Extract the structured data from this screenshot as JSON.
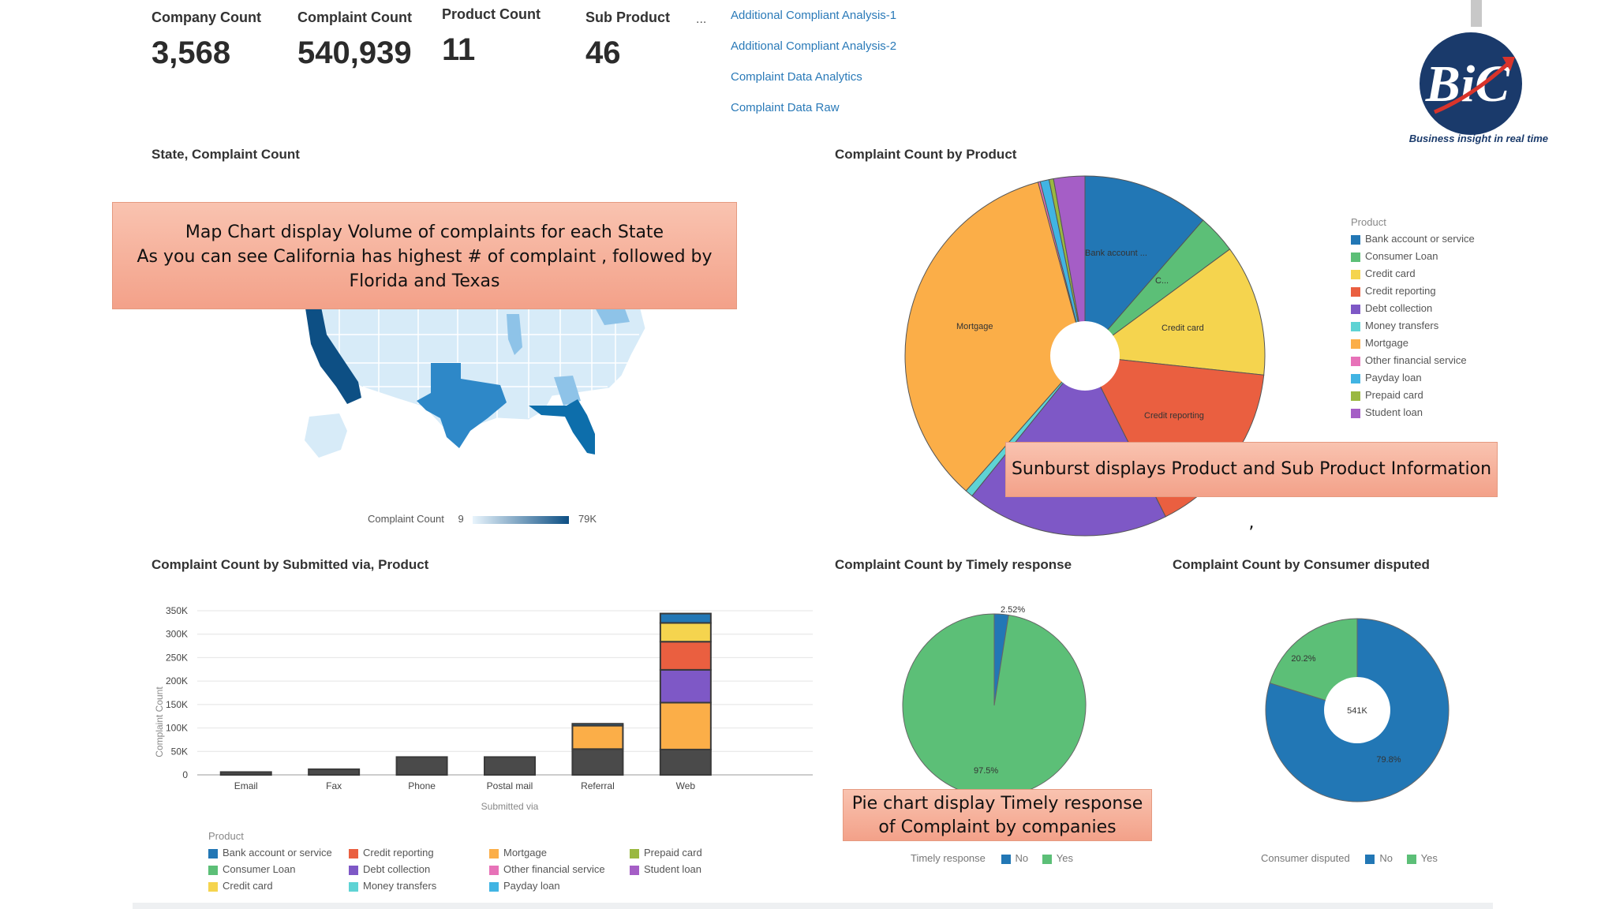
{
  "kpis": [
    {
      "label": "Company Count",
      "value": "3,568"
    },
    {
      "label": "Complaint Count",
      "value": "540,939"
    },
    {
      "label": "Product Count",
      "value": "11"
    },
    {
      "label": "Sub Product",
      "value": "46"
    }
  ],
  "kpi_more": "...",
  "links": [
    "Additional Compliant Analysis-1",
    "Additional Compliant Analysis-2",
    "Complaint Data Analytics",
    "Complaint Data Raw"
  ],
  "logo": {
    "text": "BiC",
    "tagline": "Business insight in real time",
    "colors": {
      "circle": "#1a3a6b",
      "arrow": "#d9342b"
    }
  },
  "map": {
    "title": "State, Complaint Count",
    "callout_lines": [
      "Map Chart display Volume of complaints for each State",
      "As you can see California has highest # of complaint , followed by",
      "Florida and Texas"
    ],
    "legend_label": "Complaint Count",
    "legend_min": "9",
    "legend_max": "79K"
  },
  "product_chart": {
    "title": "Complaint Count by Product",
    "legend_title": "Product",
    "slice_labels": {
      "bank": "Bank account ...",
      "consumer": "C...",
      "credit_card": "Credit card",
      "credit_reporting": "Credit reporting",
      "mortgage": "Mortgage"
    },
    "callout": "Sunburst displays Product and Sub Product Information ,"
  },
  "products": [
    {
      "name": "Bank account or service",
      "color": "#2277b5"
    },
    {
      "name": "Consumer Loan",
      "color": "#5cbf77"
    },
    {
      "name": "Credit card",
      "color": "#f5d44e"
    },
    {
      "name": "Credit reporting",
      "color": "#ea5f40"
    },
    {
      "name": "Debt collection",
      "color": "#7e58c6"
    },
    {
      "name": "Money transfers",
      "color": "#5ed3d4"
    },
    {
      "name": "Mortgage",
      "color": "#fbae48"
    },
    {
      "name": "Other financial service",
      "color": "#e772b8"
    },
    {
      "name": "Payday loan",
      "color": "#41b4e3"
    },
    {
      "name": "Prepaid card",
      "color": "#9ab840"
    },
    {
      "name": "Student loan",
      "color": "#a55ec6"
    }
  ],
  "bar_chart": {
    "title": "Complaint Count by Submitted via, Product",
    "legend_title": "Product"
  },
  "timely_chart": {
    "title": "Complaint Count by Timely response",
    "callout_lines": [
      "Pie chart display Timely response",
      "of Complaint by companies"
    ],
    "legend_label": "Timely response",
    "legend_items": [
      {
        "name": "No",
        "color": "#2277b5"
      },
      {
        "name": "Yes",
        "color": "#5cbf77"
      }
    ]
  },
  "disputed_chart": {
    "title": "Complaint Count by Consumer disputed",
    "center_label": "541K",
    "legend_label": "Consumer disputed",
    "legend_items": [
      {
        "name": "No",
        "color": "#2277b5"
      },
      {
        "name": "Yes",
        "color": "#5cbf77"
      }
    ]
  },
  "chart_data": [
    {
      "type": "bar",
      "title": "Complaint Count by Submitted via, Product",
      "xlabel": "Submitted via",
      "ylabel": "Complaint Count",
      "ylim": [
        0,
        350000
      ],
      "yticks": [
        0,
        50000,
        100000,
        150000,
        200000,
        250000,
        300000,
        350000
      ],
      "ytick_labels": [
        "0",
        "50K",
        "100K",
        "150K",
        "200K",
        "250K",
        "300K",
        "350K"
      ],
      "categories": [
        "Email",
        "Fax",
        "Phone",
        "Postal mail",
        "Referral",
        "Web"
      ],
      "series": [
        {
          "name": "Bank account or service",
          "values": [
            0,
            0,
            0,
            0,
            4000,
            20000
          ]
        },
        {
          "name": "Consumer Loan",
          "values": [
            0,
            0,
            0,
            0,
            0,
            0
          ]
        },
        {
          "name": "Credit card",
          "values": [
            0,
            0,
            0,
            0,
            0,
            40000
          ]
        },
        {
          "name": "Credit reporting",
          "values": [
            0,
            0,
            0,
            0,
            0,
            60000
          ]
        },
        {
          "name": "Debt collection",
          "values": [
            0,
            0,
            0,
            0,
            0,
            70000
          ]
        },
        {
          "name": "Money transfers",
          "values": [
            0,
            0,
            0,
            0,
            0,
            0
          ]
        },
        {
          "name": "Mortgage",
          "values": [
            0,
            0,
            0,
            0,
            50000,
            100000
          ]
        },
        {
          "name": "Other financial service",
          "values": [
            0,
            0,
            0,
            0,
            0,
            0
          ]
        },
        {
          "name": "Payday loan",
          "values": [
            0,
            0,
            0,
            0,
            0,
            0
          ]
        },
        {
          "name": "Prepaid card",
          "values": [
            0,
            0,
            0,
            0,
            0,
            0
          ]
        },
        {
          "name": "Student loan",
          "values": [
            0,
            0,
            0,
            0,
            0,
            0
          ]
        },
        {
          "name": "",
          "values": [
            6000,
            12000,
            38000,
            38000,
            55000,
            54000
          ]
        }
      ],
      "series_colors": [
        "#2277b5",
        "#5cbf77",
        "#f5d44e",
        "#ea5f40",
        "#7e58c6",
        "#5ed3d4",
        "#fbae48",
        "#e772b8",
        "#41b4e3",
        "#9ab840",
        "#a55ec6",
        "#4a4a4a"
      ]
    },
    {
      "type": "pie",
      "title": "Complaint Count by Product",
      "categories": [
        "Bank account or service",
        "Consumer Loan",
        "Credit card",
        "Credit reporting",
        "Debt collection",
        "Money transfers",
        "Mortgage",
        "Other financial service",
        "Payday loan",
        "Prepaid card",
        "Student loan"
      ],
      "values": [
        11.4,
        3.5,
        11.8,
        15.9,
        18.2,
        0.7,
        34.3,
        0.2,
        0.8,
        0.4,
        2.8
      ]
    },
    {
      "type": "pie",
      "title": "Complaint Count by Timely response",
      "categories": [
        "No",
        "Yes"
      ],
      "values": [
        2.52,
        97.5
      ],
      "labels": [
        "2.52%",
        "97.5%"
      ]
    },
    {
      "type": "pie",
      "title": "Complaint Count by Consumer disputed",
      "categories": [
        "No",
        "Yes"
      ],
      "values": [
        79.8,
        20.2
      ],
      "labels": [
        "79.8%",
        "20.2%"
      ]
    }
  ]
}
